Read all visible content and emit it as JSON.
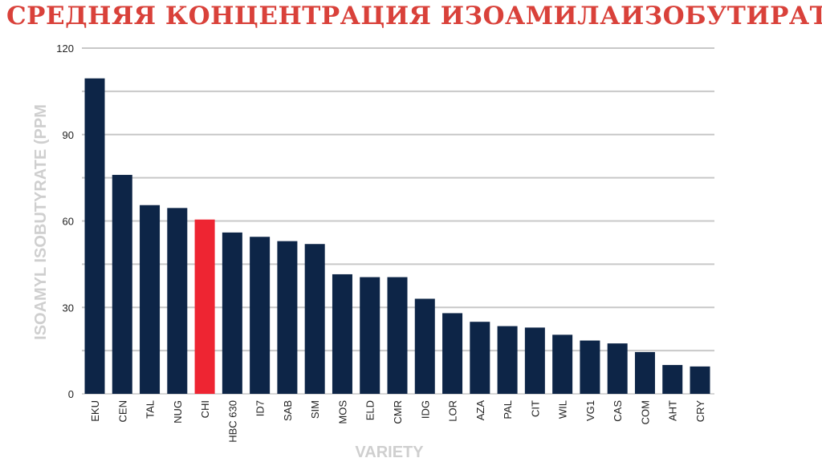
{
  "title": "СРЕДНЯЯ КОНЦЕНТРАЦИЯ ИЗОАМИЛАИЗОБУТИРАТА",
  "chart_data": {
    "type": "bar",
    "title": "СРЕДНЯЯ КОНЦЕНТРАЦИЯ ИЗОАМИЛАИЗОБУТИРАТА",
    "xlabel": "VARIETY",
    "ylabel": "ISOAMYL ISOBUTYRATE (PPM",
    "ylim": [
      0,
      120
    ],
    "yticks": [
      0,
      30,
      60,
      90,
      120
    ],
    "grid": true,
    "categories": [
      "EKU",
      "CEN",
      "TAL",
      "NUG",
      "CHI",
      "HBC 630",
      "ID7",
      "SAB",
      "SIM",
      "MOS",
      "ELD",
      "CMR",
      "IDG",
      "LOR",
      "AZA",
      "PAL",
      "CIT",
      "WIL",
      "VG1",
      "CAS",
      "COM",
      "AHT",
      "CRY"
    ],
    "values": [
      109.5,
      76,
      65.5,
      64.5,
      60.5,
      56,
      54.5,
      53,
      52,
      41.5,
      40.5,
      40.5,
      33,
      28,
      25,
      23.5,
      23,
      20.5,
      18.5,
      17.5,
      14.5,
      10,
      9.5
    ],
    "bar_color": "#0d2547",
    "highlight": {
      "category": "CHI",
      "color": "#ee2532"
    },
    "grid_color": "#c8c8c8",
    "axis_title_color": "#cfcfcf",
    "title_color": "#d9413a"
  }
}
